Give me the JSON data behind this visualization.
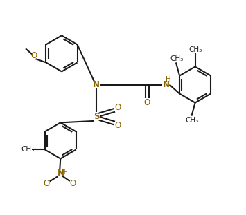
{
  "bg_color": "#ffffff",
  "bond_color": "#1a1a1a",
  "heteroatom_color": "#8B6400",
  "lw": 1.5,
  "fs": 8.5,
  "fs_small": 7.5,
  "r": 0.75,
  "xlim": [
    0,
    9.5
  ],
  "ylim": [
    -0.3,
    8.5
  ]
}
